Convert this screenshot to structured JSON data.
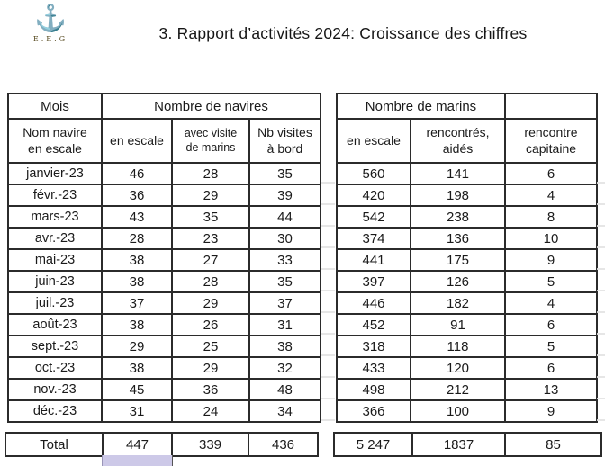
{
  "slide": {
    "title": "3. Rapport d’activités 2024: Croissance des chiffres"
  },
  "logo": {
    "icon": "anchor-icon",
    "glyph": "⚓",
    "caption": "E.E.G"
  },
  "ships_table": {
    "header": {
      "mois": "Mois",
      "group": "Nombre de navires",
      "col_month": "Nom navire\nen escale",
      "col_escale": "en escale",
      "col_visite": "avec visite\nde marins",
      "col_visites_bord": "Nb visites\nà bord"
    },
    "rows": [
      {
        "month": "janvier-23",
        "en_escale": "46",
        "avec_visite": "28",
        "nb_visites": "35"
      },
      {
        "month": "févr.-23",
        "en_escale": "36",
        "avec_visite": "29",
        "nb_visites": "39"
      },
      {
        "month": "mars-23",
        "en_escale": "43",
        "avec_visite": "35",
        "nb_visites": "44"
      },
      {
        "month": "avr.-23",
        "en_escale": "28",
        "avec_visite": "23",
        "nb_visites": "30"
      },
      {
        "month": "mai-23",
        "en_escale": "38",
        "avec_visite": "27",
        "nb_visites": "33"
      },
      {
        "month": "juin-23",
        "en_escale": "38",
        "avec_visite": "28",
        "nb_visites": "35"
      },
      {
        "month": "juil.-23",
        "en_escale": "37",
        "avec_visite": "29",
        "nb_visites": "37"
      },
      {
        "month": "août-23",
        "en_escale": "38",
        "avec_visite": "26",
        "nb_visites": "31"
      },
      {
        "month": "sept.-23",
        "en_escale": "29",
        "avec_visite": "25",
        "nb_visites": "38"
      },
      {
        "month": "oct.-23",
        "en_escale": "38",
        "avec_visite": "29",
        "nb_visites": "32"
      },
      {
        "month": "nov.-23",
        "en_escale": "45",
        "avec_visite": "36",
        "nb_visites": "48"
      },
      {
        "month": "déc.-23",
        "en_escale": "31",
        "avec_visite": "24",
        "nb_visites": "34"
      }
    ],
    "total": {
      "label": "Total",
      "en_escale": "447",
      "avec_visite": "339",
      "nb_visites": "436"
    }
  },
  "sailors_table": {
    "header": {
      "group": "Nombre de marins",
      "empty": "",
      "col_escale": "en escale",
      "col_rencontres": "rencontrés,\naidés",
      "col_capitaine": "rencontre\ncapitaine"
    },
    "rows": [
      {
        "en_escale": "560",
        "rencontres_aides": "141",
        "rencontre_capitaine": "6"
      },
      {
        "en_escale": "420",
        "rencontres_aides": "198",
        "rencontre_capitaine": "4"
      },
      {
        "en_escale": "542",
        "rencontres_aides": "238",
        "rencontre_capitaine": "8"
      },
      {
        "en_escale": "374",
        "rencontres_aides": "136",
        "rencontre_capitaine": "10"
      },
      {
        "en_escale": "441",
        "rencontres_aides": "175",
        "rencontre_capitaine": "9"
      },
      {
        "en_escale": "397",
        "rencontres_aides": "126",
        "rencontre_capitaine": "5"
      },
      {
        "en_escale": "446",
        "rencontres_aides": "182",
        "rencontre_capitaine": "4"
      },
      {
        "en_escale": "452",
        "rencontres_aides": "91",
        "rencontre_capitaine": "6"
      },
      {
        "en_escale": "318",
        "rencontres_aides": "118",
        "rencontre_capitaine": "5"
      },
      {
        "en_escale": "433",
        "rencontres_aides": "120",
        "rencontre_capitaine": "6"
      },
      {
        "en_escale": "498",
        "rencontres_aides": "212",
        "rencontre_capitaine": "13"
      },
      {
        "en_escale": "366",
        "rencontres_aides": "100",
        "rencontre_capitaine": "9"
      }
    ],
    "total": {
      "en_escale": "5 247",
      "rencontres_aides": "1837",
      "rencontre_capitaine": "85"
    }
  },
  "colors": {
    "border": "#2b2b2b",
    "text": "#1a1a1a",
    "highlight_cell": "#cdc9e8",
    "logo_gold": "#8a7434"
  }
}
